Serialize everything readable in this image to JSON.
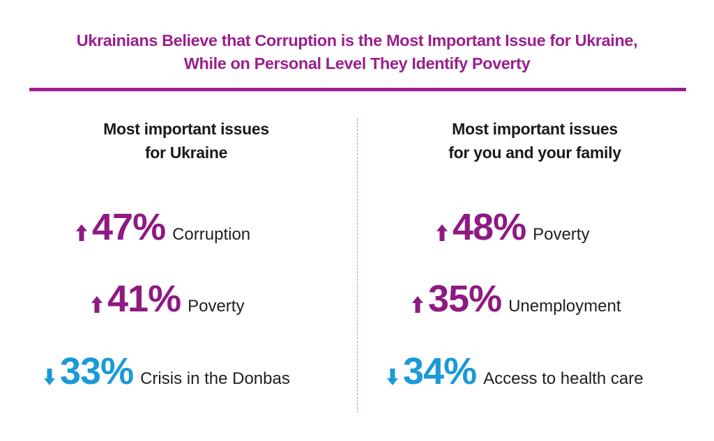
{
  "title_line1": "Ukrainians Believe that Corruption is the Most Important Issue for Ukraine,",
  "title_line2": "While on Personal Level They Identify Poverty",
  "colors": {
    "brand": "#9b1f8e",
    "up": "#8e1a82",
    "down": "#1a9ad6",
    "text": "#1f1f1f"
  },
  "chart_data": [
    {
      "type": "table",
      "title_line1": "Most important issues",
      "title_line2": "for Ukraine",
      "rows": [
        {
          "value": "47%",
          "label": "Corruption",
          "trend": "up"
        },
        {
          "value": "41%",
          "label": "Poverty",
          "trend": "up"
        },
        {
          "value": "33%",
          "label": "Crisis in the Donbas",
          "trend": "down"
        }
      ]
    },
    {
      "type": "table",
      "title_line1": "Most important issues",
      "title_line2": "for you and your family",
      "rows": [
        {
          "value": "48%",
          "label": "Poverty",
          "trend": "up"
        },
        {
          "value": "35%",
          "label": "Unemployment",
          "trend": "up"
        },
        {
          "value": "34%",
          "label": "Access to health care",
          "trend": "down"
        }
      ]
    }
  ]
}
